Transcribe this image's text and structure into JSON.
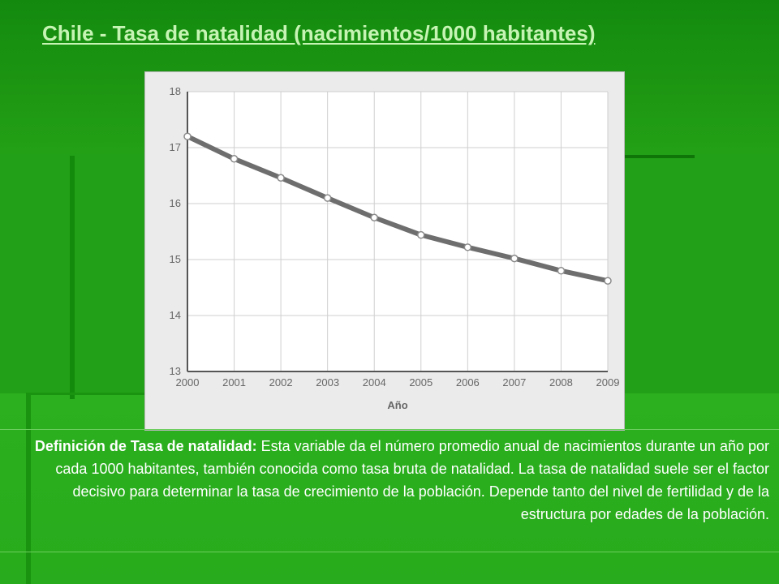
{
  "page": {
    "title": "Chile - Tasa de natalidad (nacimientos/1000 habitantes)"
  },
  "definition": {
    "label": "Definición de Tasa de natalidad:",
    "text": " Esta variable da el número promedio anual de nacimientos durante un año por cada 1000 habitantes, también conocida como tasa bruta de natalidad. La tasa de natalidad suele ser el factor decisivo para determinar la tasa de crecimiento de la población. Depende tanto del nivel de fertilidad y de la estructura por edades de la población."
  },
  "chart_data": {
    "type": "line",
    "title": "",
    "xlabel": "Año",
    "ylabel": "",
    "x": [
      "2000",
      "2001",
      "2002",
      "2003",
      "2004",
      "2005",
      "2006",
      "2007",
      "2008",
      "2009"
    ],
    "series": [
      {
        "values": [
          17.2,
          16.8,
          16.46,
          16.1,
          15.75,
          15.44,
          15.22,
          15.02,
          14.8,
          14.62
        ]
      }
    ],
    "ylim": [
      13,
      18
    ],
    "yticks": [
      13,
      14,
      15,
      16,
      17,
      18
    ],
    "grid": true,
    "legend": "none",
    "colors": {
      "line": "#6e6e6e",
      "marker_fill": "#ffffff",
      "grid": "#cfcfcf",
      "plot_bg": "#ffffff",
      "axis": "#555555",
      "label": "#666666"
    }
  }
}
